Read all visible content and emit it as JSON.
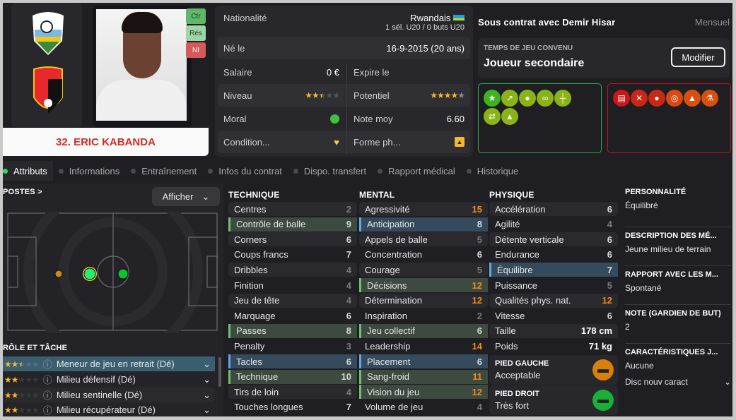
{
  "player": {
    "name": "32. ERIC KABANDA",
    "badges": [
      "Ctr",
      "Rés",
      "NI"
    ],
    "national_crest": "FERWAFA",
    "club_crest": "Demir Hisar"
  },
  "info": {
    "nationality_label": "Nationalité",
    "nationality": "Rwandais",
    "caps": "1 sél. U20 / 0 buts U20",
    "born_label": "Né le",
    "born": "16-9-2015 (20 ans)",
    "salary_label": "Salaire",
    "salary": "0 €",
    "expires_label": "Expire le",
    "level_label": "Niveau",
    "level_stars": 2.5,
    "potential_label": "Potentiel",
    "potential_stars": 4,
    "morale_label": "Moral",
    "avg_label": "Note moy",
    "avg": "6.60",
    "condition_label": "Condition...",
    "form_label": "Forme ph..."
  },
  "contract": {
    "title": "Sous contrat avec Demir Hisar",
    "period": "Mensuel",
    "playtime_label": "TEMPS DE JEU CONVENU",
    "playtime": "Joueur secondaire",
    "modify": "Modifier",
    "positive_icons": [
      "star-icon",
      "trend-up-icon",
      "head-icon",
      "chain-icon",
      "signpost-icon",
      "arrows-icon",
      "cone-smile-icon"
    ],
    "negative_icons": [
      "report-icon",
      "broken-bone-icon",
      "injury-icon",
      "target-icon",
      "cone-icon",
      "flask-icon"
    ]
  },
  "tabs": [
    "Attributs",
    "Informations",
    "Entraînement",
    "Infos du contrat",
    "Dispo. transfert",
    "Rapport médical",
    "Historique"
  ],
  "positions": {
    "title": "POSTES >",
    "show": "Afficher",
    "roles_title": "RÔLE ET TÂCHE",
    "roles": [
      {
        "label": "Meneur de jeu en retrait (Dé)",
        "stars": 2.5
      },
      {
        "label": "Milieu défensif (Dé)",
        "stars": 2
      },
      {
        "label": "Milieu sentinelle (Dé)",
        "stars": 2
      },
      {
        "label": "Milieu récupérateur (Dé)",
        "stars": 2
      }
    ]
  },
  "technique": {
    "title": "TECHNIQUE",
    "items": [
      [
        "Centres",
        "2",
        ""
      ],
      [
        "Contrôle de balle",
        "9",
        "g"
      ],
      [
        "Corners",
        "6",
        ""
      ],
      [
        "Coups francs",
        "7",
        ""
      ],
      [
        "Dribbles",
        "4",
        ""
      ],
      [
        "Finition",
        "4",
        ""
      ],
      [
        "Jeu de tête",
        "4",
        ""
      ],
      [
        "Marquage",
        "6",
        ""
      ],
      [
        "Passes",
        "8",
        "g"
      ],
      [
        "Penalty",
        "3",
        ""
      ],
      [
        "Tacles",
        "6",
        "b"
      ],
      [
        "Technique",
        "10",
        "g"
      ],
      [
        "Tirs de loin",
        "4",
        ""
      ],
      [
        "Touches longues",
        "7",
        ""
      ]
    ]
  },
  "mental": {
    "title": "MENTAL",
    "items": [
      [
        "Agressivité",
        "15",
        ""
      ],
      [
        "Anticipation",
        "8",
        "b"
      ],
      [
        "Appels de balle",
        "5",
        ""
      ],
      [
        "Concentration",
        "6",
        ""
      ],
      [
        "Courage",
        "5",
        ""
      ],
      [
        "Décisions",
        "12",
        "g"
      ],
      [
        "Détermination",
        "12",
        ""
      ],
      [
        "Inspiration",
        "2",
        ""
      ],
      [
        "Jeu collectif",
        "6",
        "g"
      ],
      [
        "Leadership",
        "14",
        ""
      ],
      [
        "Placement",
        "6",
        "b"
      ],
      [
        "Sang-froid",
        "11",
        "g"
      ],
      [
        "Vision du jeu",
        "12",
        "g"
      ],
      [
        "Volume de jeu",
        "4",
        ""
      ]
    ]
  },
  "physique": {
    "title": "PHYSIQUE",
    "items": [
      [
        "Accélération",
        "6",
        ""
      ],
      [
        "Agilité",
        "4",
        ""
      ],
      [
        "Détente verticale",
        "6",
        ""
      ],
      [
        "Endurance",
        "6",
        ""
      ],
      [
        "Équilibre",
        "7",
        "b"
      ],
      [
        "Puissance",
        "5",
        ""
      ],
      [
        "Qualités phys. nat.",
        "12",
        ""
      ],
      [
        "Vitesse",
        "6",
        ""
      ],
      [
        "Taille",
        "178 cm",
        ""
      ],
      [
        "Poids",
        "71 kg",
        ""
      ]
    ],
    "left_foot_label": "PIED GAUCHE",
    "left_foot": "Acceptable",
    "right_foot_label": "PIED DROIT",
    "right_foot": "Très fort"
  },
  "personality": [
    {
      "h": "PERSONNALITÉ",
      "v": "Équilibré"
    },
    {
      "h": "DESCRIPTION DES MÉ...",
      "v": "Jeune milieu de terrain"
    },
    {
      "h": "RAPPORT AVEC LES M...",
      "v": "Spontané"
    },
    {
      "h": "NOTE (GARDIEN DE BUT)",
      "v": "2"
    },
    {
      "h": "CARACTÉRISTIQUES J...",
      "v": "Aucune",
      "extra": "Disc nouv caract"
    }
  ],
  "colors": {
    "accent_green": "#3cb44a",
    "accent_red": "#c8141e",
    "highlight_orange": "#f08a1c"
  }
}
